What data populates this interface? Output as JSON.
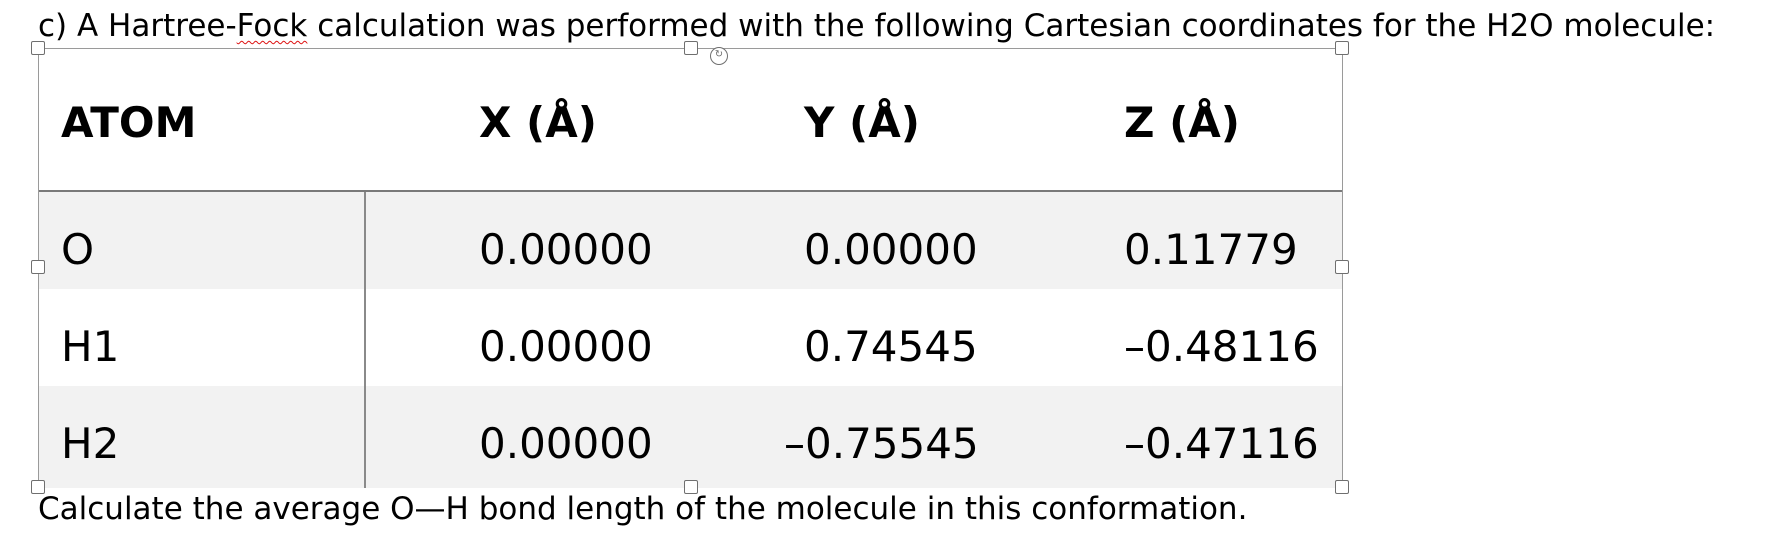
{
  "question": {
    "prefix": "c) A Hartree-",
    "flagged_word": "Fock",
    "suffix": " calculation was performed with the following Cartesian coordinates for the H2O molecule:"
  },
  "table": {
    "headers": [
      "ATOM",
      "X (Å)",
      "Y (Å)",
      "Z (Å)"
    ],
    "rows": [
      {
        "atom": "O",
        "x": "0.00000",
        "y": "0.00000",
        "z": "0.11779"
      },
      {
        "atom": "H1",
        "x": "0.00000",
        "y": "0.74545",
        "z": "–0.48116"
      },
      {
        "atom": "H2",
        "x": "0.00000",
        "y": "–0.75545",
        "z": "–0.47116"
      }
    ]
  },
  "footer": "Calculate the average O—H bond length of the molecule in this conformation.",
  "icons": {
    "rotate": "rotate-handle-icon",
    "resize": "resize-handle-icon"
  },
  "colors": {
    "shaded_row": "#f2f2f2",
    "spellcheck": "#dd1111"
  }
}
